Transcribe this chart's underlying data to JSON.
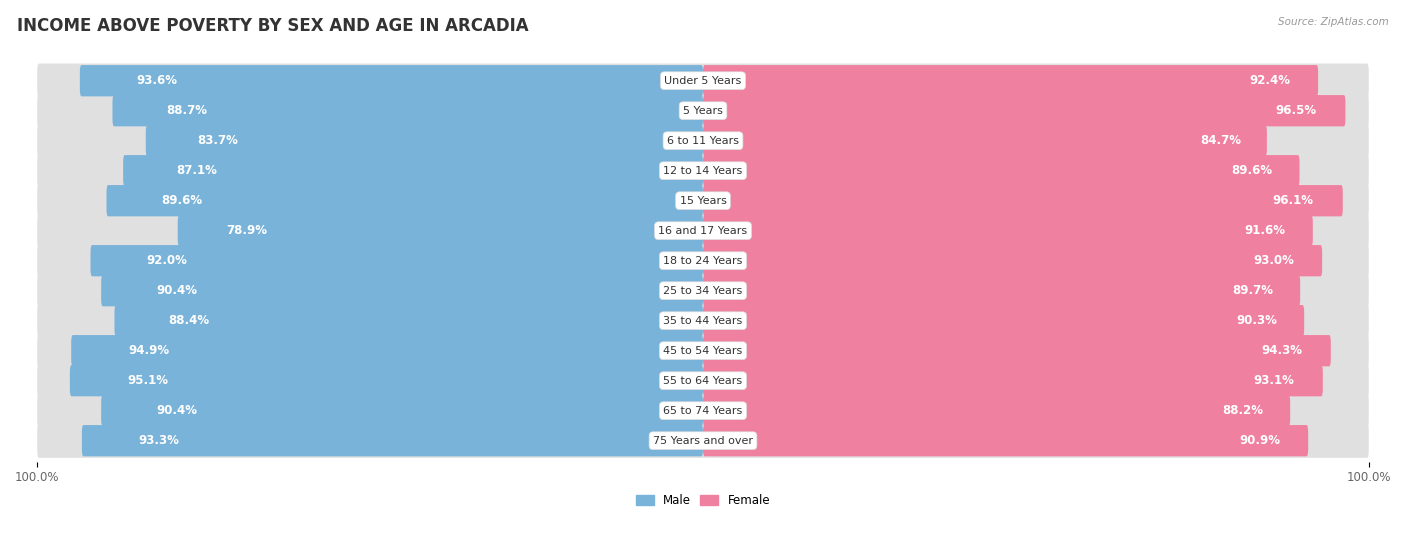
{
  "title": "INCOME ABOVE POVERTY BY SEX AND AGE IN ARCADIA",
  "source": "Source: ZipAtlas.com",
  "categories": [
    "Under 5 Years",
    "5 Years",
    "6 to 11 Years",
    "12 to 14 Years",
    "15 Years",
    "16 and 17 Years",
    "18 to 24 Years",
    "25 to 34 Years",
    "35 to 44 Years",
    "45 to 54 Years",
    "55 to 64 Years",
    "65 to 74 Years",
    "75 Years and over"
  ],
  "male_values": [
    93.6,
    88.7,
    83.7,
    87.1,
    89.6,
    78.9,
    92.0,
    90.4,
    88.4,
    94.9,
    95.1,
    90.4,
    93.3
  ],
  "female_values": [
    92.4,
    96.5,
    84.7,
    89.6,
    96.1,
    91.6,
    93.0,
    89.7,
    90.3,
    94.3,
    93.1,
    88.2,
    90.9
  ],
  "male_color": "#7ab3d9",
  "female_color": "#f080a0",
  "male_label": "Male",
  "female_label": "Female",
  "bg_color": "#ffffff",
  "track_color": "#e0e0e0",
  "title_fontsize": 12,
  "label_fontsize": 8.5,
  "axis_fontsize": 8.5,
  "max_val": 100.0
}
